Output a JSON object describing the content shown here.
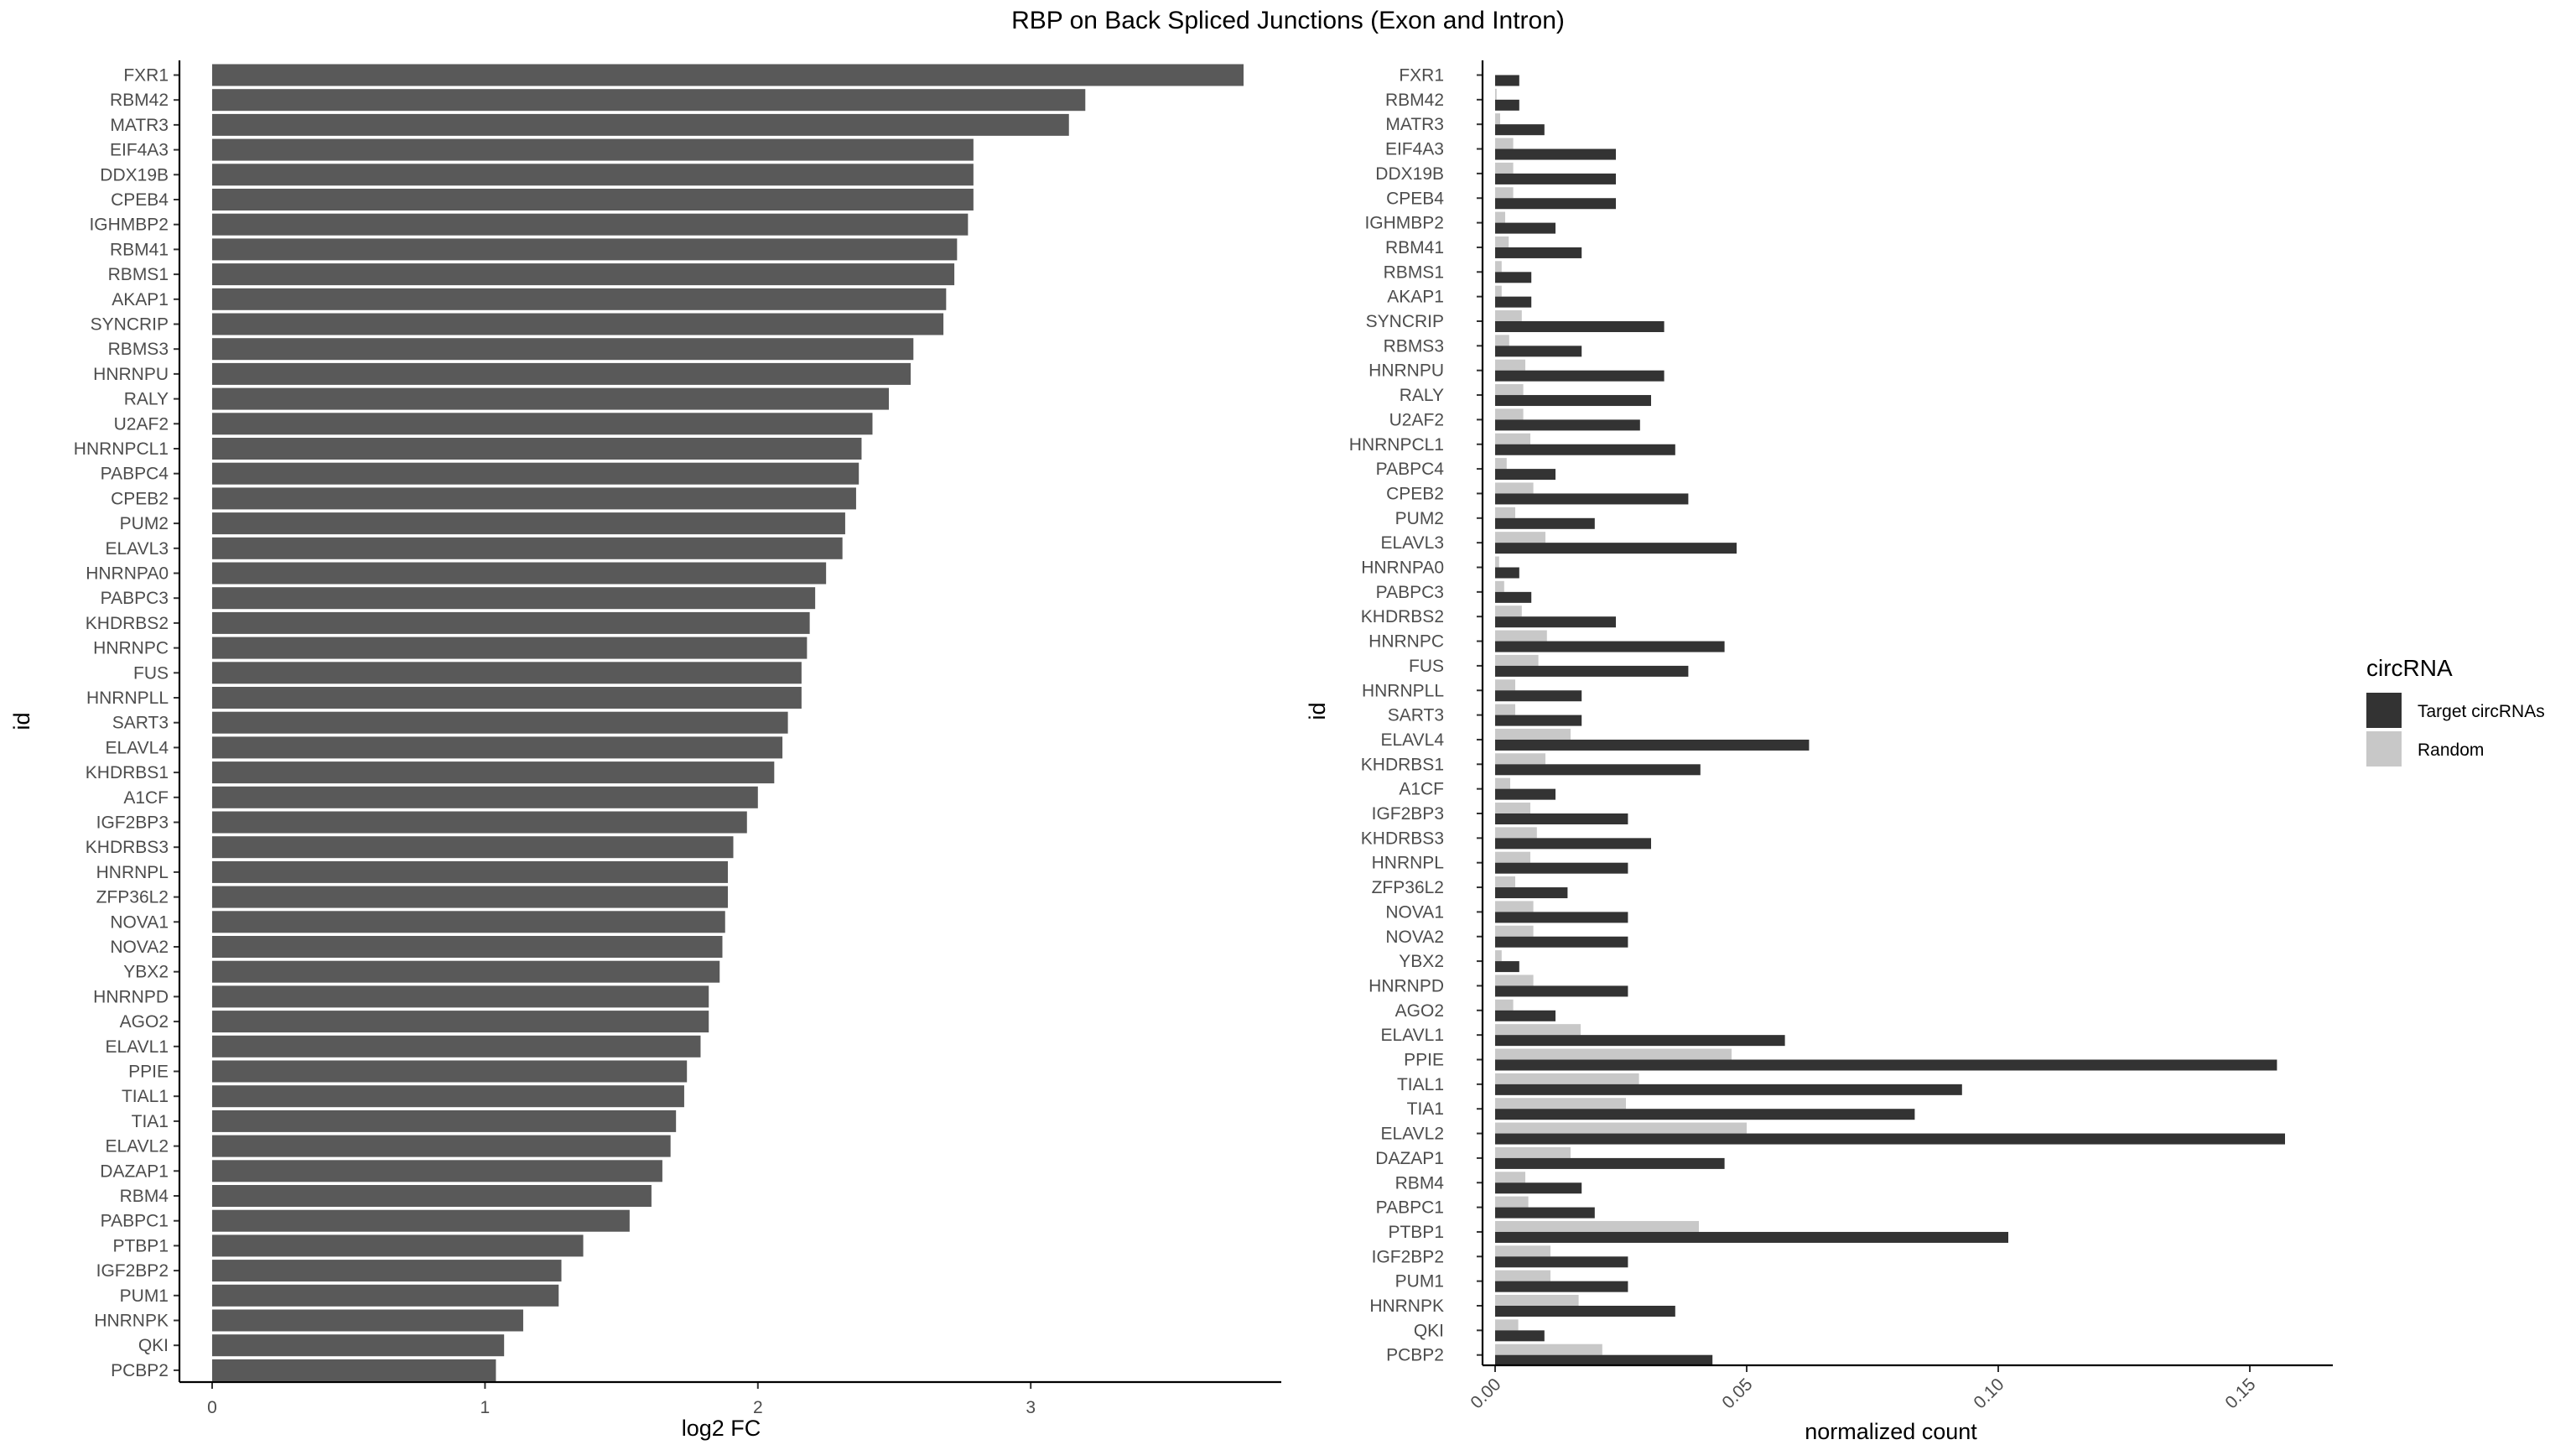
{
  "title": "RBP on Back Spliced Junctions (Exon and Intron)",
  "chart_data": [
    {
      "type": "bar",
      "orientation": "horizontal",
      "xlabel": "log2 FC",
      "ylabel": "id",
      "xlim": [
        0,
        3.8
      ],
      "xticks": [
        "0",
        "1",
        "2",
        "3"
      ],
      "bar_color": "#595959",
      "grid": false,
      "categories": [
        "FXR1",
        "RBM42",
        "MATR3",
        "EIF4A3",
        "DDX19B",
        "CPEB4",
        "IGHMBP2",
        "RBM41",
        "RBMS1",
        "AKAP1",
        "SYNCRIP",
        "RBMS3",
        "HNRNPU",
        "RALY",
        "U2AF2",
        "HNRNPCL1",
        "PABPC4",
        "CPEB2",
        "PUM2",
        "ELAVL3",
        "HNRNPA0",
        "PABPC3",
        "KHDRBS2",
        "HNRNPC",
        "FUS",
        "HNRNPLL",
        "SART3",
        "ELAVL4",
        "KHDRBS1",
        "A1CF",
        "IGF2BP3",
        "KHDRBS3",
        "HNRNPL",
        "ZFP36L2",
        "NOVA1",
        "NOVA2",
        "YBX2",
        "HNRNPD",
        "AGO2",
        "ELAVL1",
        "PPIE",
        "TIAL1",
        "TIA1",
        "ELAVL2",
        "DAZAP1",
        "RBM4",
        "PABPC1",
        "PTBP1",
        "IGF2BP2",
        "PUM1",
        "HNRNPK",
        "QKI",
        "PCBP2"
      ],
      "values": [
        3.78,
        3.2,
        3.14,
        2.79,
        2.79,
        2.79,
        2.77,
        2.73,
        2.72,
        2.69,
        2.68,
        2.57,
        2.56,
        2.48,
        2.42,
        2.38,
        2.37,
        2.36,
        2.32,
        2.31,
        2.25,
        2.21,
        2.19,
        2.18,
        2.16,
        2.16,
        2.11,
        2.09,
        2.06,
        2.0,
        1.96,
        1.91,
        1.89,
        1.89,
        1.88,
        1.87,
        1.86,
        1.82,
        1.82,
        1.79,
        1.74,
        1.73,
        1.7,
        1.68,
        1.65,
        1.61,
        1.53,
        1.36,
        1.28,
        1.27,
        1.14,
        1.07,
        1.04
      ]
    },
    {
      "type": "bar",
      "orientation": "horizontal",
      "grouped": true,
      "xlabel": "normalized count",
      "ylabel": "id",
      "xlim": [
        0,
        0.166
      ],
      "xticks": [
        "0.00",
        "0.05",
        "0.10",
        "0.15"
      ],
      "grid": false,
      "legend": {
        "title": "circRNA",
        "position": "right"
      },
      "categories": [
        "FXR1",
        "RBM42",
        "MATR3",
        "EIF4A3",
        "DDX19B",
        "CPEB4",
        "IGHMBP2",
        "RBM41",
        "RBMS1",
        "AKAP1",
        "SYNCRIP",
        "RBMS3",
        "HNRNPU",
        "RALY",
        "U2AF2",
        "HNRNPCL1",
        "PABPC4",
        "CPEB2",
        "PUM2",
        "ELAVL3",
        "HNRNPA0",
        "PABPC3",
        "KHDRBS2",
        "HNRNPC",
        "FUS",
        "HNRNPLL",
        "SART3",
        "ELAVL4",
        "KHDRBS1",
        "A1CF",
        "IGF2BP3",
        "KHDRBS3",
        "HNRNPL",
        "ZFP36L2",
        "NOVA1",
        "NOVA2",
        "YBX2",
        "HNRNPD",
        "AGO2",
        "ELAVL1",
        "PPIE",
        "TIAL1",
        "TIA1",
        "ELAVL2",
        "DAZAP1",
        "RBM4",
        "PABPC1",
        "PTBP1",
        "IGF2BP2",
        "PUM1",
        "HNRNPK",
        "QKI",
        "PCBP2"
      ],
      "series": [
        {
          "name": "Random",
          "color": "#c8c8c8",
          "values": [
            0.0,
            0.0003,
            0.001,
            0.0036,
            0.0036,
            0.0036,
            0.002,
            0.0027,
            0.0013,
            0.0013,
            0.0053,
            0.0028,
            0.006,
            0.0056,
            0.0056,
            0.007,
            0.0023,
            0.0076,
            0.004,
            0.01,
            0.0008,
            0.0018,
            0.0053,
            0.0103,
            0.0086,
            0.004,
            0.004,
            0.015,
            0.01,
            0.003,
            0.007,
            0.0083,
            0.007,
            0.004,
            0.0076,
            0.0076,
            0.0013,
            0.0076,
            0.0036,
            0.017,
            0.047,
            0.0286,
            0.026,
            0.05,
            0.015,
            0.006,
            0.0066,
            0.0405,
            0.011,
            0.011,
            0.0166,
            0.0046,
            0.0213
          ]
        },
        {
          "name": "Target circRNAs",
          "color": "#333333",
          "values": [
            0.0048,
            0.0048,
            0.0098,
            0.024,
            0.024,
            0.024,
            0.012,
            0.0172,
            0.0072,
            0.0072,
            0.0336,
            0.0172,
            0.0336,
            0.031,
            0.0288,
            0.0358,
            0.012,
            0.0384,
            0.0198,
            0.048,
            0.0048,
            0.0072,
            0.024,
            0.0456,
            0.0384,
            0.0172,
            0.0172,
            0.0624,
            0.0408,
            0.012,
            0.0264,
            0.031,
            0.0264,
            0.0144,
            0.0264,
            0.0264,
            0.0048,
            0.0264,
            0.012,
            0.0576,
            0.1554,
            0.0928,
            0.0834,
            0.157,
            0.0456,
            0.0172,
            0.0198,
            0.102,
            0.0264,
            0.0264,
            0.0358,
            0.0098,
            0.0432
          ]
        }
      ]
    }
  ]
}
